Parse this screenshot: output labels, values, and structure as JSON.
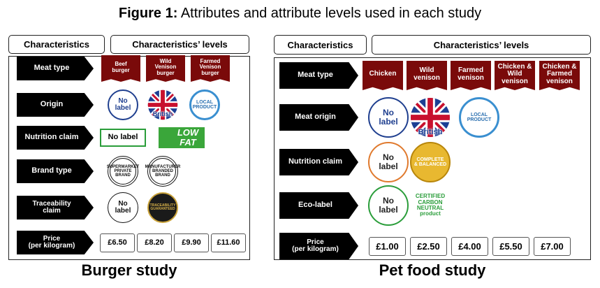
{
  "title": {
    "label": "Figure 1:",
    "text": "Attributes and attribute levels used in each study"
  },
  "panels": [
    {
      "caption": "Burger study",
      "header": [
        "Characteristics",
        "Characteristics’ levels"
      ],
      "rows": [
        {
          "attribute": [
            "Meat type"
          ],
          "levels": [
            [
              "Beef",
              "burger"
            ],
            [
              "Wild",
              "Venison",
              "burger"
            ],
            [
              "Farmed",
              "Venison",
              "burger"
            ]
          ]
        },
        {
          "attribute": [
            "Origin"
          ],
          "levels": [
            [
              "No",
              "label"
            ],
            [
              "British"
            ],
            [
              "LOCAL",
              "PRODUCT"
            ]
          ]
        },
        {
          "attribute": [
            "Nutrition claim"
          ],
          "levels": [
            [
              "No label"
            ],
            [
              "LOW",
              "FAT"
            ]
          ]
        },
        {
          "attribute": [
            "Brand type"
          ],
          "levels": [
            [
              "SUPERMARKET",
              "PRIVATE",
              "BRAND"
            ],
            [
              "MANUFACTURER",
              "BRANDED",
              "BRAND"
            ]
          ]
        },
        {
          "attribute": [
            "Traceability",
            "claim"
          ],
          "levels": [
            [
              "No",
              "label"
            ],
            [
              "TRACEABILITY",
              "GUARANTEED"
            ]
          ]
        },
        {
          "attribute": [
            "Price",
            "(per kilogram)"
          ],
          "levels": [
            [
              "£6.50"
            ],
            [
              "£8.20"
            ],
            [
              "£9.90"
            ],
            [
              "£11.60"
            ]
          ]
        }
      ]
    },
    {
      "caption": "Pet food study",
      "header": [
        "Characteristics",
        "Characteristics’ levels"
      ],
      "rows": [
        {
          "attribute": [
            "Meat type"
          ],
          "levels": [
            [
              "Chicken"
            ],
            [
              "Wild",
              "venison"
            ],
            [
              "Farmed",
              "venison"
            ],
            [
              "Chicken &",
              "Wild",
              "venison"
            ],
            [
              "Chicken &",
              "Farmed",
              "venison"
            ]
          ]
        },
        {
          "attribute": [
            "Meat origin"
          ],
          "levels": [
            [
              "No",
              "label"
            ],
            [
              "British"
            ],
            [
              "LOCAL",
              "PRODUCT"
            ]
          ]
        },
        {
          "attribute": [
            "Nutrition claim"
          ],
          "levels": [
            [
              "No",
              "label"
            ],
            [
              "COMPLETE",
              "& BALANCED"
            ]
          ]
        },
        {
          "attribute": [
            "Eco-label"
          ],
          "levels": [
            [
              "No",
              "label"
            ],
            [
              "CERTIFIED",
              "CARBON",
              "NEUTRAL",
              "product"
            ]
          ]
        },
        {
          "attribute": [
            "Price",
            "(per kilogram)"
          ],
          "levels": [
            [
              "£1.00"
            ],
            [
              "£2.50"
            ],
            [
              "£4.00"
            ],
            [
              "£5.50"
            ],
            [
              "£7.00"
            ]
          ]
        }
      ]
    }
  ]
}
